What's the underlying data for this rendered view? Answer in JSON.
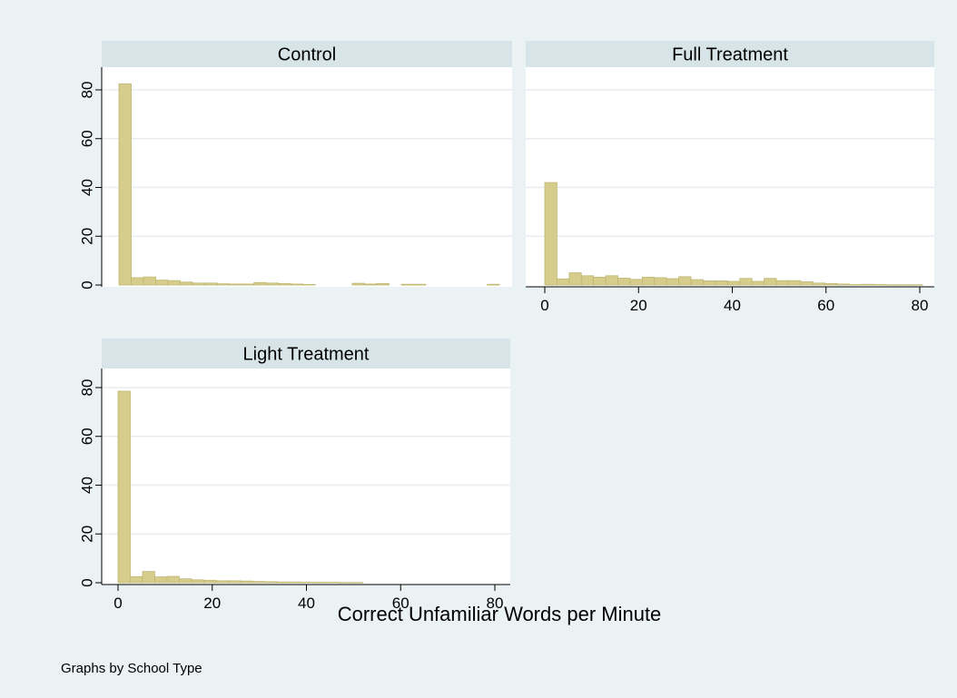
{
  "colors": {
    "outer_background": "#eaf2f3",
    "plot_background": "#ffffff",
    "strip_background": "#d8e5e8",
    "bar_fill": "#d6cd8c",
    "bar_stroke": "#bfb772",
    "gridline": "#e8eef0",
    "axis": "#000000"
  },
  "figure": {
    "xlabel": "Correct Unfamiliar Words per Minute",
    "note": "Graphs by School Type"
  },
  "chart_data": {
    "type": "bar",
    "subtype": "histogram",
    "group_variable": "School Type",
    "bin_width": 2.6,
    "bin_start": 0,
    "xlim": [
      0,
      80
    ],
    "ylim": [
      0,
      85
    ],
    "x_ticks": [
      "0",
      "20",
      "40",
      "60",
      "80"
    ],
    "y_ticks": [
      "0",
      "20",
      "40",
      "60",
      "80"
    ],
    "grid": true,
    "panels": [
      {
        "title": "Control",
        "show_x_ticks": false,
        "show_y_ticks": true,
        "values": [
          82.5,
          3.0,
          3.3,
          2.0,
          1.8,
          1.2,
          0.8,
          0.8,
          0.5,
          0.4,
          0.4,
          1.0,
          0.8,
          0.6,
          0.4,
          0.2,
          0,
          0,
          0,
          0.7,
          0.4,
          0.6,
          0,
          0.3,
          0.3,
          0,
          0,
          0,
          0,
          0,
          0.3
        ]
      },
      {
        "title": "Full Treatment",
        "show_x_ticks": true,
        "show_y_ticks": false,
        "values": [
          42,
          2.5,
          5.0,
          3.8,
          3.2,
          3.8,
          2.8,
          2.3,
          3.2,
          3.0,
          2.6,
          3.4,
          2.2,
          1.7,
          1.7,
          1.5,
          2.7,
          1.5,
          2.7,
          1.8,
          1.8,
          1.3,
          0.8,
          0.6,
          0.4,
          0.2,
          0.3,
          0.2,
          0.1,
          0.1,
          0.1
        ]
      },
      {
        "title": "Light Treatment",
        "show_x_ticks": true,
        "show_y_ticks": true,
        "values": [
          78.5,
          2.5,
          4.6,
          2.4,
          2.6,
          1.6,
          1.2,
          1.0,
          0.8,
          0.8,
          0.7,
          0.5,
          0.4,
          0.3,
          0.3,
          0.2,
          0.2,
          0.2,
          0.1,
          0.1,
          0,
          0,
          0,
          0,
          0,
          0,
          0,
          0,
          0,
          0,
          0
        ]
      }
    ]
  }
}
